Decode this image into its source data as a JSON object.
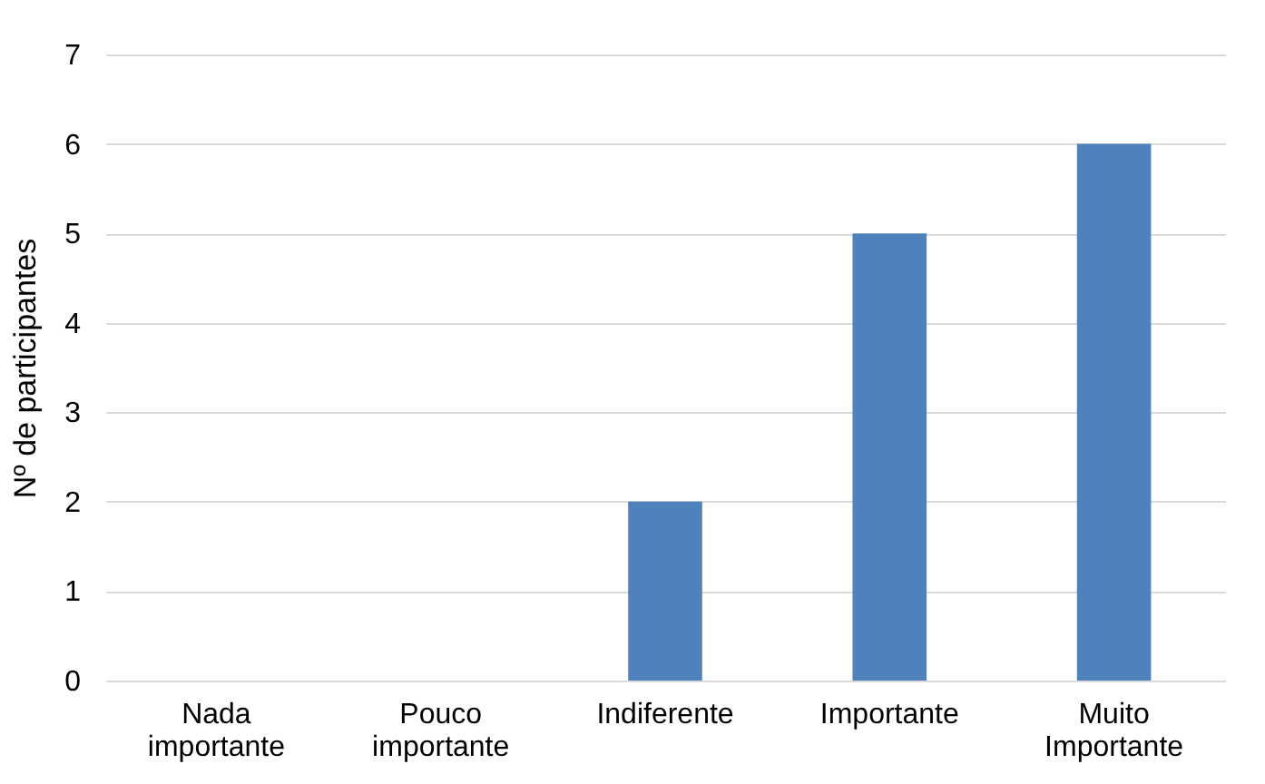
{
  "chart_data": {
    "type": "bar",
    "ylabel": "Nº de participantes",
    "categories": [
      "Nada importante",
      "Pouco importante",
      "Indiferente",
      "Importante",
      "Muito Importante"
    ],
    "values": [
      0,
      0,
      2,
      5,
      6
    ],
    "color": "#4f81bd",
    "ylim": [
      0,
      7
    ],
    "yticks": [
      0,
      1,
      2,
      3,
      4,
      5,
      6,
      7
    ],
    "grid": "y"
  }
}
